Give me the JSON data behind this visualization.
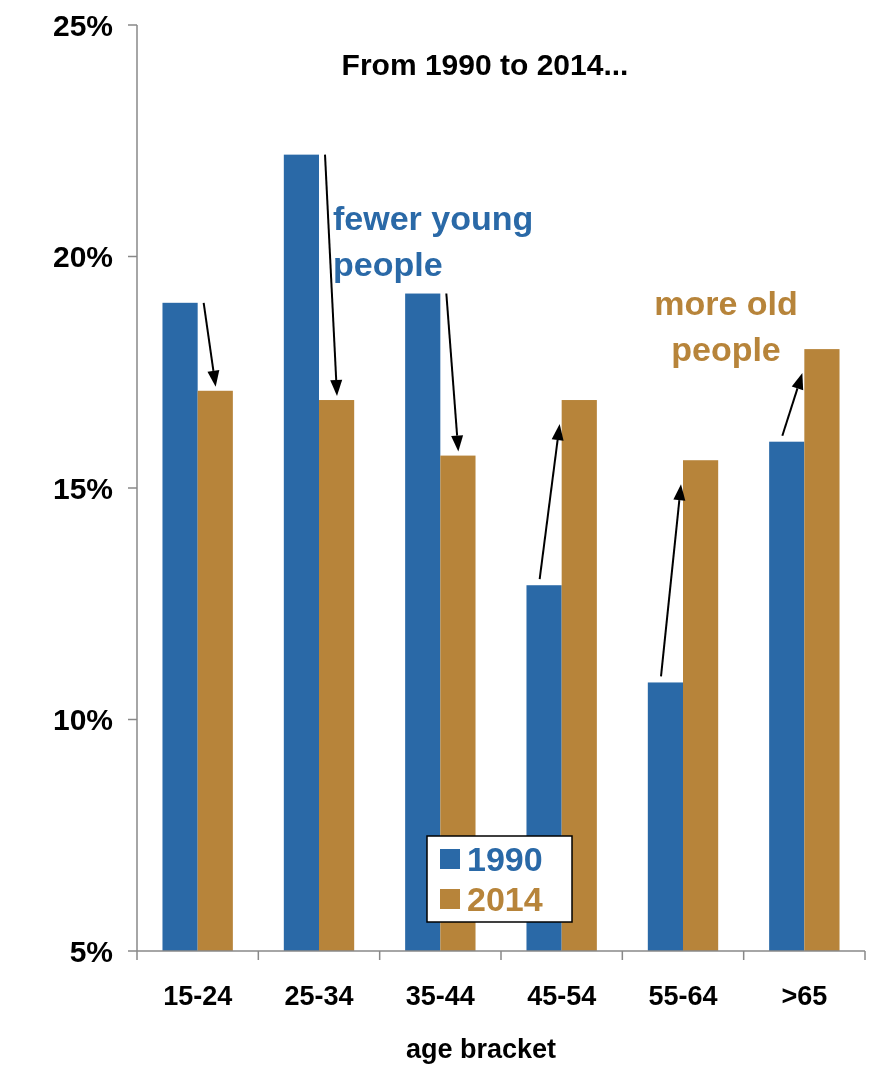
{
  "chart_data": {
    "type": "bar",
    "title": "From 1990 to 2014...",
    "xlabel": "age bracket",
    "categories": [
      "15-24",
      "25-34",
      "35-44",
      "45-54",
      "55-64",
      ">65"
    ],
    "series": [
      {
        "name": "1990",
        "color": "#2a69a7",
        "values": [
          19.0,
          22.2,
          19.2,
          12.9,
          10.8,
          16.0
        ]
      },
      {
        "name": "2014",
        "color": "#b7843a",
        "values": [
          17.1,
          16.9,
          15.7,
          16.9,
          15.6,
          18.0
        ]
      }
    ],
    "ylim": [
      5,
      25
    ],
    "yticks": [
      {
        "value": 5,
        "label": "5%"
      },
      {
        "value": 10,
        "label": "10%"
      },
      {
        "value": 15,
        "label": "15%"
      },
      {
        "value": 20,
        "label": "20%"
      },
      {
        "value": 25,
        "label": "25%"
      }
    ],
    "annotations": [
      "fewer young people",
      "more old people"
    ],
    "grid": false,
    "legend": "bottom"
  }
}
